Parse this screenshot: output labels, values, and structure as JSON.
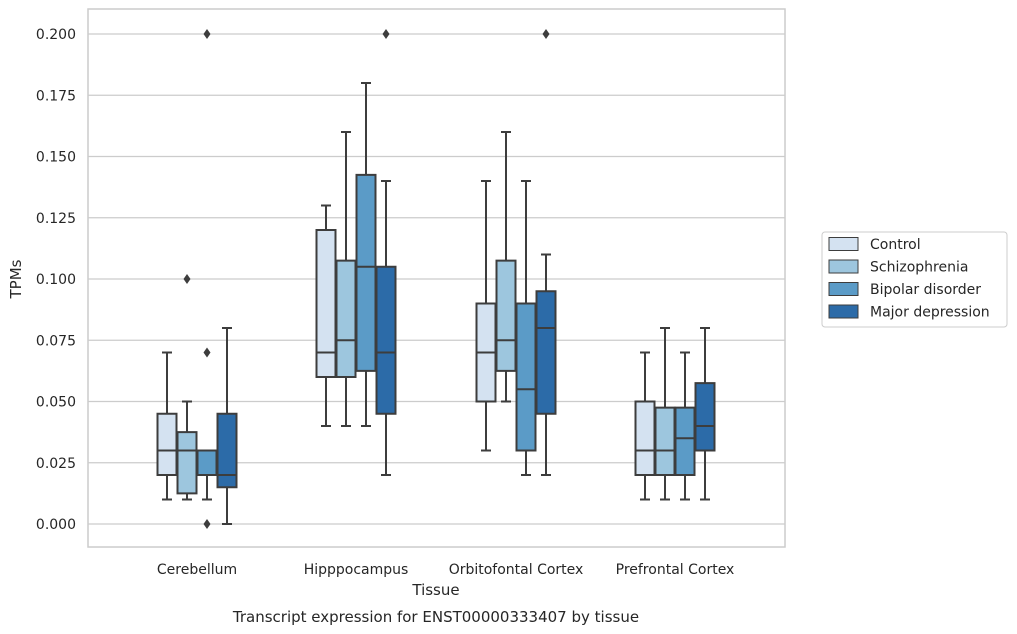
{
  "chart_data": {
    "type": "box",
    "xlabel": "Tissue",
    "ylabel": "TPMs",
    "caption": "Transcript expression for ENST00000333407 by tissue",
    "ylim": [
      -0.01,
      0.21
    ],
    "yticks": [
      "0.000",
      "0.025",
      "0.050",
      "0.075",
      "0.100",
      "0.125",
      "0.150",
      "0.175",
      "0.200"
    ],
    "grid": true,
    "legend_position": "right",
    "categories": [
      "Cerebellum",
      "Hipppocampus",
      "Orbitofontal Cortex",
      "Prefrontal Cortex"
    ],
    "series": [
      {
        "name": "Control",
        "color": "#d4e2f1",
        "boxes": [
          {
            "whisker_low": 0.01,
            "q1": 0.02,
            "median": 0.03,
            "q3": 0.045,
            "whisker_high": 0.07,
            "outliers": []
          },
          {
            "whisker_low": 0.04,
            "q1": 0.06,
            "median": 0.07,
            "q3": 0.12,
            "whisker_high": 0.13,
            "outliers": []
          },
          {
            "whisker_low": 0.03,
            "q1": 0.05,
            "median": 0.07,
            "q3": 0.09,
            "whisker_high": 0.14,
            "outliers": []
          },
          {
            "whisker_low": 0.01,
            "q1": 0.02,
            "median": 0.03,
            "q3": 0.05,
            "whisker_high": 0.07,
            "outliers": []
          }
        ]
      },
      {
        "name": "Schizophrenia",
        "color": "#9dc6de",
        "boxes": [
          {
            "whisker_low": 0.01,
            "q1": 0.0125,
            "median": 0.03,
            "q3": 0.0375,
            "whisker_high": 0.05,
            "outliers": [
              0.1
            ]
          },
          {
            "whisker_low": 0.04,
            "q1": 0.06,
            "median": 0.075,
            "q3": 0.1075,
            "whisker_high": 0.16,
            "outliers": []
          },
          {
            "whisker_low": 0.05,
            "q1": 0.0625,
            "median": 0.075,
            "q3": 0.1075,
            "whisker_high": 0.16,
            "outliers": []
          },
          {
            "whisker_low": 0.01,
            "q1": 0.02,
            "median": 0.03,
            "q3": 0.0475,
            "whisker_high": 0.08,
            "outliers": []
          }
        ]
      },
      {
        "name": "Bipolar disorder",
        "color": "#5b9bc7",
        "boxes": [
          {
            "whisker_low": 0.01,
            "q1": 0.02,
            "median": 0.03,
            "q3": 0.03,
            "whisker_high": 0.03,
            "outliers": [
              0.0,
              0.07,
              0.2
            ]
          },
          {
            "whisker_low": 0.04,
            "q1": 0.0625,
            "median": 0.105,
            "q3": 0.1425,
            "whisker_high": 0.18,
            "outliers": []
          },
          {
            "whisker_low": 0.02,
            "q1": 0.03,
            "median": 0.055,
            "q3": 0.09,
            "whisker_high": 0.14,
            "outliers": []
          },
          {
            "whisker_low": 0.01,
            "q1": 0.02,
            "median": 0.035,
            "q3": 0.0475,
            "whisker_high": 0.07,
            "outliers": []
          }
        ]
      },
      {
        "name": "Major depression",
        "color": "#2c6ba8",
        "boxes": [
          {
            "whisker_low": 0.0,
            "q1": 0.015,
            "median": 0.02,
            "q3": 0.045,
            "whisker_high": 0.08,
            "outliers": []
          },
          {
            "whisker_low": 0.02,
            "q1": 0.045,
            "median": 0.07,
            "q3": 0.105,
            "whisker_high": 0.14,
            "outliers": [
              0.2
            ]
          },
          {
            "whisker_low": 0.02,
            "q1": 0.045,
            "median": 0.08,
            "q3": 0.095,
            "whisker_high": 0.11,
            "outliers": [
              0.2
            ]
          },
          {
            "whisker_low": 0.01,
            "q1": 0.03,
            "median": 0.04,
            "q3": 0.0575,
            "whisker_high": 0.08,
            "outliers": []
          }
        ]
      }
    ]
  }
}
